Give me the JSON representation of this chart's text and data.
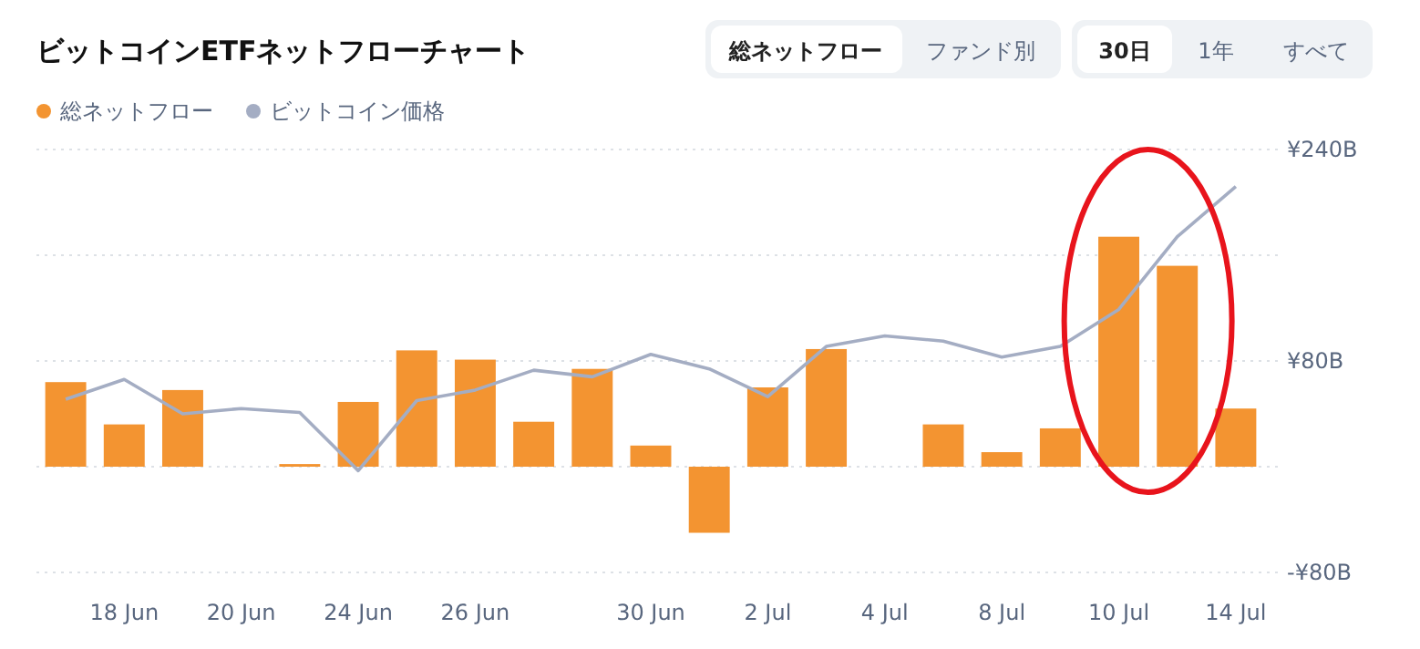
{
  "chart_data": {
    "type": "bar",
    "title": "ビットコインETFネットフローチャート",
    "annotations": [
      "総ネットフロー",
      "ファンド別",
      "30日",
      "1年",
      "すべて"
    ],
    "categories": [
      null,
      "18 Jun",
      null,
      "20 Jun",
      null,
      "24 Jun",
      null,
      "26 Jun",
      null,
      null,
      "30 Jun",
      null,
      "2 Jul",
      null,
      "4 Jul",
      null,
      "8 Jul",
      null,
      "10 Jul",
      null,
      "14 Jul"
    ],
    "series": [
      {
        "name": "総ネットフロー",
        "color": "#f39431",
        "values": [
          64,
          32,
          58,
          null,
          2,
          49,
          88,
          81,
          34,
          74,
          16,
          -50,
          60,
          89,
          null,
          32,
          11,
          29,
          174,
          152,
          44
        ]
      },
      {
        "name": "ビットコイン価格",
        "type": "line",
        "color": "#a4adc3",
        "values": [
          51,
          66,
          40,
          44,
          41,
          -3,
          50,
          58,
          73,
          68,
          85,
          74,
          53,
          91,
          99,
          95,
          83,
          91,
          119,
          174,
          212
        ]
      }
    ],
    "ylim": [
      -80,
      240
    ],
    "yticks": [
      {
        "value": -80,
        "label": "-¥80B"
      },
      {
        "value": 0,
        "label": null
      },
      {
        "value": 80,
        "label": "¥80B"
      },
      {
        "value": 160,
        "label": null
      },
      {
        "value": 240,
        "label": "¥240B"
      }
    ],
    "grid": "y",
    "legend": "top left",
    "marker": "none",
    "line_style": "solid"
  }
}
